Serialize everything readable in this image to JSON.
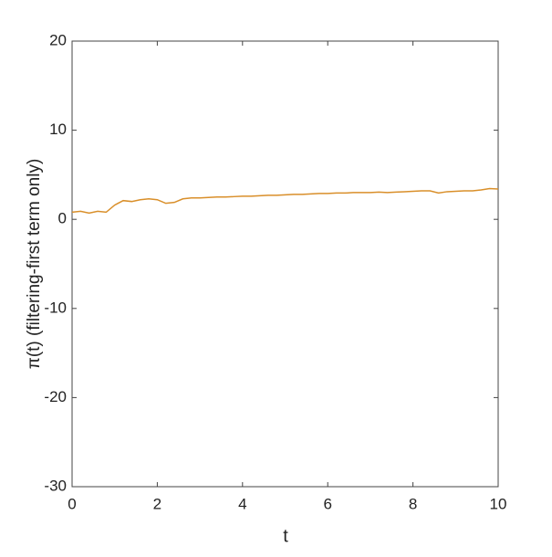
{
  "chart_data": {
    "type": "line",
    "xlabel": "t",
    "ylabel": "π(t)  (filtering-first term only)",
    "x": [
      0,
      0.2,
      0.4,
      0.6,
      0.8,
      1.0,
      1.2,
      1.4,
      1.6,
      1.8,
      2.0,
      2.2,
      2.4,
      2.6,
      2.8,
      3.0,
      3.2,
      3.4,
      3.6,
      3.8,
      4.0,
      4.2,
      4.4,
      4.6,
      4.8,
      5.0,
      5.2,
      5.4,
      5.6,
      5.8,
      6.0,
      6.2,
      6.4,
      6.6,
      6.8,
      7.0,
      7.2,
      7.4,
      7.6,
      7.8,
      8.0,
      8.2,
      8.4,
      8.6,
      8.8,
      9.0,
      9.2,
      9.4,
      9.6,
      9.8,
      10.0
    ],
    "series": [
      {
        "color": "#d98f2a",
        "values": [
          0.8,
          0.9,
          0.7,
          0.9,
          0.8,
          1.6,
          2.1,
          2.0,
          2.2,
          2.3,
          2.2,
          1.8,
          1.9,
          2.3,
          2.4,
          2.4,
          2.45,
          2.5,
          2.5,
          2.55,
          2.6,
          2.6,
          2.65,
          2.7,
          2.7,
          2.75,
          2.8,
          2.8,
          2.85,
          2.9,
          2.9,
          2.95,
          2.95,
          3.0,
          3.0,
          3.0,
          3.05,
          3.0,
          3.05,
          3.1,
          3.15,
          3.2,
          3.2,
          2.95,
          3.1,
          3.15,
          3.2,
          3.2,
          3.3,
          3.45,
          3.4
        ]
      }
    ],
    "xlim": [
      0,
      10
    ],
    "xticks": [
      0,
      2,
      4,
      6,
      8,
      10
    ],
    "ylim": [
      -30,
      20
    ],
    "yticks": [
      -30,
      -20,
      -10,
      0,
      10,
      20
    ],
    "grid": false
  }
}
